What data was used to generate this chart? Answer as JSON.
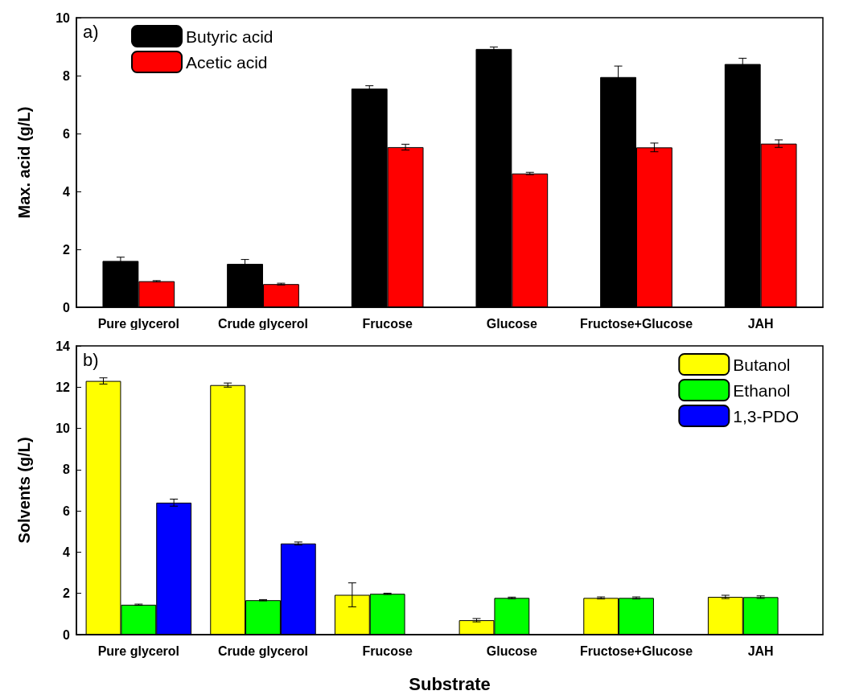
{
  "chart_data": [
    {
      "type": "bar",
      "ylabel": "Max. acid (g/L)",
      "annotations": [
        "a)"
      ],
      "categories": [
        "Pure glycerol",
        "Crude glycerol",
        "Frucose",
        "Glucose",
        "Fructose+Glucose",
        "JAH"
      ],
      "series": [
        {
          "name": "Butyric acid",
          "color": "#000000",
          "values": [
            1.6,
            1.5,
            7.55,
            8.92,
            7.95,
            8.4
          ],
          "errors": [
            0.13,
            0.15,
            0.1,
            0.07,
            0.38,
            0.2
          ]
        },
        {
          "name": "Acetic acid",
          "color": "#ff0000",
          "values": [
            0.9,
            0.8,
            5.53,
            4.62,
            5.52,
            5.65
          ],
          "errors": [
            0.02,
            0.03,
            0.1,
            0.04,
            0.15,
            0.13
          ]
        }
      ],
      "ylim": [
        0,
        10
      ],
      "yticks": [
        0,
        2,
        4,
        6,
        8,
        10
      ],
      "grid": false,
      "legend": "top left"
    },
    {
      "type": "bar",
      "ylabel": "Solvents (g/L)",
      "xlabel": "Substrate",
      "annotations": [
        "b)"
      ],
      "categories": [
        "Pure glycerol",
        "Crude glycerol",
        "Frucose",
        "Glucose",
        "Fructose+Glucose",
        "JAH"
      ],
      "series": [
        {
          "name": "Butanol",
          "color": "#ffff00",
          "values": [
            12.3,
            12.1,
            1.93,
            0.7,
            1.78,
            1.83
          ],
          "errors": [
            0.15,
            0.1,
            0.58,
            0.08,
            0.05,
            0.08
          ]
        },
        {
          "name": "Ethanol",
          "color": "#00ff00",
          "values": [
            1.45,
            1.67,
            1.98,
            1.78,
            1.78,
            1.82
          ],
          "errors": [
            0.03,
            0.03,
            0.03,
            0.04,
            0.05,
            0.06
          ]
        },
        {
          "name": "1,3-PDO",
          "color": "#0000ff",
          "values": [
            6.4,
            4.42,
            null,
            null,
            null,
            null
          ],
          "errors": [
            0.17,
            0.07,
            null,
            null,
            null,
            null
          ]
        }
      ],
      "ylim": [
        0,
        14
      ],
      "yticks": [
        0,
        2,
        4,
        6,
        8,
        10,
        12,
        14
      ],
      "grid": false,
      "legend": "top right"
    }
  ]
}
